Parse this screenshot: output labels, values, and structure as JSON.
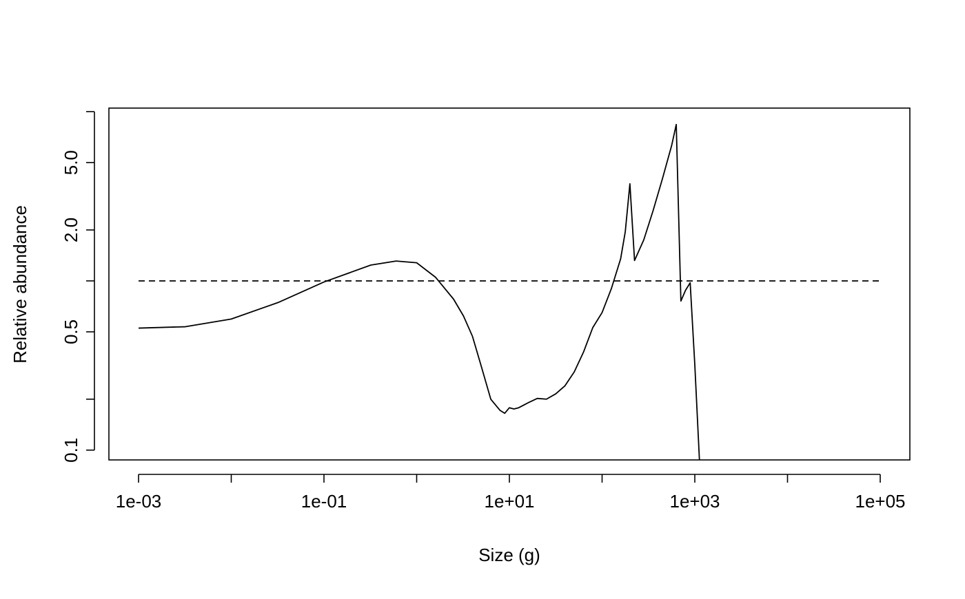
{
  "chart_data": {
    "type": "line",
    "xlabel": "Size (g)",
    "ylabel": "Relative abundance",
    "x_scale": "log10",
    "y_scale": "log10",
    "xlim": [
      0.001,
      100000
    ],
    "ylim": [
      0.0875,
      10.5
    ],
    "x_ticks": [
      {
        "value": 0.001,
        "label": "1e-03"
      },
      {
        "value": 0.01,
        "label": ""
      },
      {
        "value": 0.1,
        "label": "1e-01"
      },
      {
        "value": 1,
        "label": ""
      },
      {
        "value": 10,
        "label": "1e+01"
      },
      {
        "value": 100,
        "label": ""
      },
      {
        "value": 1000,
        "label": "1e+03"
      },
      {
        "value": 10000,
        "label": ""
      },
      {
        "value": 100000,
        "label": "1e+05"
      }
    ],
    "y_ticks": [
      {
        "value": 0.1,
        "label": "0.1"
      },
      {
        "value": 0.2,
        "label": ""
      },
      {
        "value": 0.5,
        "label": "0.5"
      },
      {
        "value": 1,
        "label": ""
      },
      {
        "value": 2,
        "label": "2.0"
      },
      {
        "value": 5,
        "label": "5.0"
      },
      {
        "value": 10,
        "label": ""
      }
    ],
    "series": [
      {
        "style": "solid",
        "points": [
          [
            0.001,
            0.526
          ],
          [
            0.0032,
            0.536
          ],
          [
            0.01,
            0.595
          ],
          [
            0.032,
            0.745
          ],
          [
            0.1,
            0.985
          ],
          [
            0.32,
            1.24
          ],
          [
            0.6,
            1.31
          ],
          [
            1.0,
            1.28
          ],
          [
            1.6,
            1.05
          ],
          [
            2.5,
            0.78
          ],
          [
            3.2,
            0.62
          ],
          [
            4.0,
            0.47
          ],
          [
            5.0,
            0.31
          ],
          [
            6.3,
            0.2
          ],
          [
            7.9,
            0.172
          ],
          [
            8.9,
            0.165
          ],
          [
            10.0,
            0.178
          ],
          [
            11.2,
            0.175
          ],
          [
            12.6,
            0.178
          ],
          [
            15.8,
            0.19
          ],
          [
            20.0,
            0.202
          ],
          [
            25.1,
            0.2
          ],
          [
            31.6,
            0.215
          ],
          [
            39.8,
            0.24
          ],
          [
            50.1,
            0.29
          ],
          [
            63.1,
            0.38
          ],
          [
            79.4,
            0.53
          ],
          [
            100.0,
            0.65
          ],
          [
            125.9,
            0.9
          ],
          [
            158.5,
            1.35
          ],
          [
            177.8,
            1.95
          ],
          [
            199.5,
            3.75
          ],
          [
            223.9,
            1.32
          ],
          [
            281.8,
            1.75
          ],
          [
            354.8,
            2.6
          ],
          [
            446.7,
            4.0
          ],
          [
            562.3,
            6.3
          ],
          [
            630.9,
            8.4
          ],
          [
            707.9,
            0.76
          ],
          [
            794.3,
            0.88
          ],
          [
            891.3,
            0.975
          ],
          [
            1000.0,
            0.32
          ],
          [
            1122.0,
            0.0875
          ]
        ]
      },
      {
        "style": "dashed",
        "points": [
          [
            0.001,
            1.0
          ],
          [
            100000,
            1.0
          ]
        ]
      }
    ]
  }
}
